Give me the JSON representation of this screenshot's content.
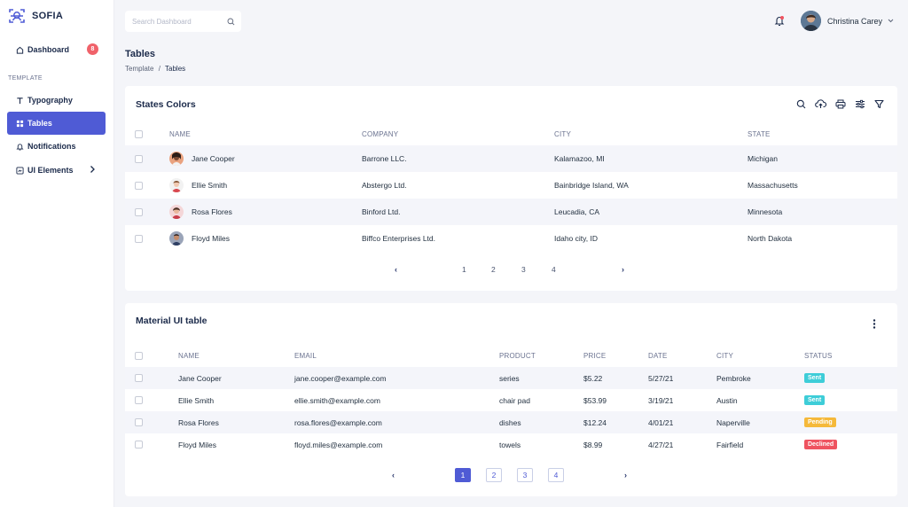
{
  "app": {
    "name": "SOFIA"
  },
  "sidebar": {
    "dashboard": {
      "label": "Dashboard",
      "badge": "8"
    },
    "section": "TEMPLATE",
    "items": [
      {
        "label": "Typography",
        "icon": "typography-icon"
      },
      {
        "label": "Tables",
        "icon": "grid-icon",
        "active": true
      },
      {
        "label": "Notifications",
        "icon": "bell-icon"
      },
      {
        "label": "UI Elements",
        "icon": "ui-elements-icon"
      }
    ]
  },
  "search": {
    "placeholder": "Search Dashboard"
  },
  "user": {
    "name": "Christina Carey"
  },
  "page": {
    "title": "Tables",
    "breadcrumb": {
      "root": "Template",
      "separator": "/",
      "current": "Tables"
    }
  },
  "states_table": {
    "title": "States Colors",
    "columns": [
      "NAME",
      "COMPANY",
      "CITY",
      "STATE"
    ],
    "rows": [
      {
        "name": "Jane Cooper",
        "company": "Barrone LLC.",
        "city": "Kalamazoo, MI",
        "state": "Michigan"
      },
      {
        "name": "Ellie Smith",
        "company": "Abstergo Ltd.",
        "city": "Bainbridge Island, WA",
        "state": "Massachusetts"
      },
      {
        "name": "Rosa Flores",
        "company": "Binford Ltd.",
        "city": "Leucadia, CA",
        "state": "Minnesota"
      },
      {
        "name": "Floyd Miles",
        "company": "Biffco Enterprises Ltd.",
        "city": "Idaho city, ID",
        "state": "North Dakota"
      }
    ],
    "pagination": {
      "prev": "‹",
      "pages": [
        "1",
        "2",
        "3",
        "4"
      ],
      "next": "›"
    }
  },
  "material_table": {
    "title": "Material UI table",
    "columns": [
      "NAME",
      "EMAIL",
      "PRODUCT",
      "PRICE",
      "DATE",
      "CITY",
      "STATUS"
    ],
    "rows": [
      {
        "name": "Jane Cooper",
        "email": "jane.cooper@example.com",
        "product": "series",
        "price": "$5.22",
        "date": "5/27/21",
        "city": "Pembroke",
        "status": "Sent"
      },
      {
        "name": "Ellie Smith",
        "email": "ellie.smith@example.com",
        "product": "chair pad",
        "price": "$53.99",
        "date": "3/19/21",
        "city": "Austin",
        "status": "Sent"
      },
      {
        "name": "Rosa Flores",
        "email": "rosa.flores@example.com",
        "product": "dishes",
        "price": "$12.24",
        "date": "4/01/21",
        "city": "Naperville",
        "status": "Pending"
      },
      {
        "name": "Floyd Miles",
        "email": "floyd.miles@example.com",
        "product": "towels",
        "price": "$8.99",
        "date": "4/27/21",
        "city": "Fairfield",
        "status": "Declined"
      }
    ],
    "pagination": {
      "prev": "‹",
      "pages": [
        "1",
        "2",
        "3",
        "4"
      ],
      "active_page": "1",
      "next": "›"
    }
  },
  "colors": {
    "accent": "#4f5bd5",
    "sent": "#3ecdd8",
    "pending": "#f5b93a",
    "declined": "#ef5360",
    "badge": "#f0626a"
  }
}
